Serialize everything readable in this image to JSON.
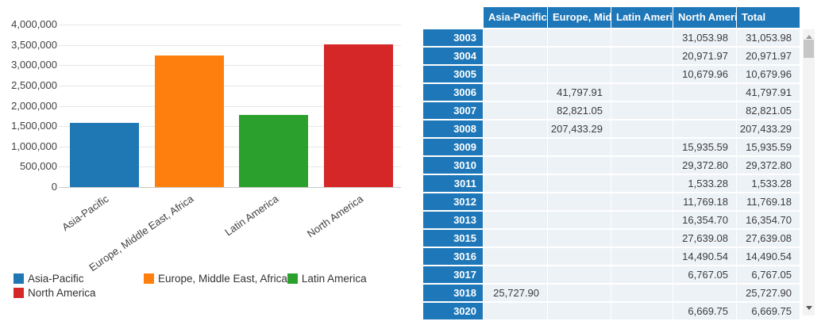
{
  "chart_data": {
    "type": "bar",
    "title": "",
    "xlabel": "",
    "ylabel": "",
    "categories": [
      "Asia-Pacific",
      "Europe, Middle East, Africa",
      "Latin America",
      "North America"
    ],
    "values": [
      1590000,
      3230000,
      1780000,
      3520000
    ],
    "colors": [
      "#1f77b4",
      "#ff7f0e",
      "#2ca02c",
      "#d62728"
    ],
    "ylim": [
      0,
      4000000
    ],
    "ytick_step": 500000,
    "grid": true,
    "legend_position": "bottom",
    "legend_entries": [
      "Asia-Pacific",
      "Europe, Middle East, Africa",
      "Latin America",
      "North America"
    ]
  },
  "table": {
    "corner_label": "",
    "columns": [
      "Asia-Pacific",
      "Europe, Midd",
      "Latin America",
      "North Americ",
      "Total"
    ],
    "rows": [
      {
        "label": "3003",
        "values": [
          "",
          "",
          "",
          "31,053.98",
          "31,053.98"
        ]
      },
      {
        "label": "3004",
        "values": [
          "",
          "",
          "",
          "20,971.97",
          "20,971.97"
        ]
      },
      {
        "label": "3005",
        "values": [
          "",
          "",
          "",
          "10,679.96",
          "10,679.96"
        ]
      },
      {
        "label": "3006",
        "values": [
          "",
          "41,797.91",
          "",
          "",
          "41,797.91"
        ]
      },
      {
        "label": "3007",
        "values": [
          "",
          "82,821.05",
          "",
          "",
          "82,821.05"
        ]
      },
      {
        "label": "3008",
        "values": [
          "",
          "207,433.29",
          "",
          "",
          "207,433.29"
        ]
      },
      {
        "label": "3009",
        "values": [
          "",
          "",
          "",
          "15,935.59",
          "15,935.59"
        ]
      },
      {
        "label": "3010",
        "values": [
          "",
          "",
          "",
          "29,372.80",
          "29,372.80"
        ]
      },
      {
        "label": "3011",
        "values": [
          "",
          "",
          "",
          "1,533.28",
          "1,533.28"
        ]
      },
      {
        "label": "3012",
        "values": [
          "",
          "",
          "",
          "11,769.18",
          "11,769.18"
        ]
      },
      {
        "label": "3013",
        "values": [
          "",
          "",
          "",
          "16,354.70",
          "16,354.70"
        ]
      },
      {
        "label": "3015",
        "values": [
          "",
          "",
          "",
          "27,639.08",
          "27,639.08"
        ]
      },
      {
        "label": "3016",
        "values": [
          "",
          "",
          "",
          "14,490.54",
          "14,490.54"
        ]
      },
      {
        "label": "3017",
        "values": [
          "",
          "",
          "",
          "6,767.05",
          "6,767.05"
        ]
      },
      {
        "label": "3018",
        "values": [
          "25,727.90",
          "",
          "",
          "",
          "25,727.90"
        ]
      },
      {
        "label": "3020",
        "values": [
          "",
          "",
          "",
          "6,669.75",
          "6,669.75"
        ]
      }
    ]
  }
}
